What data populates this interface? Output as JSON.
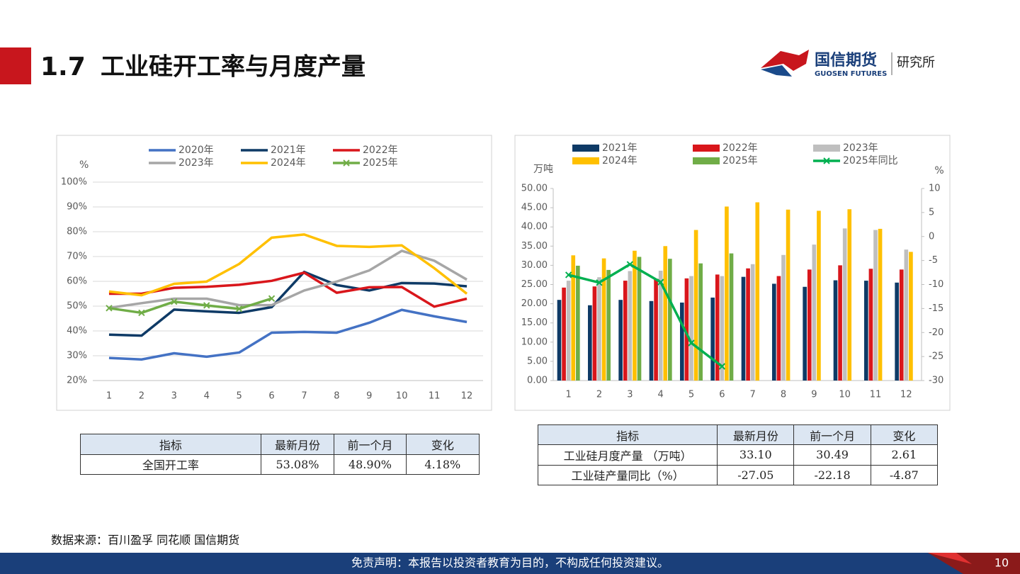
{
  "header": {
    "section": "1.7",
    "title": "工业硅开工率与月度产量"
  },
  "logo": {
    "name": "国信期货",
    "name_en": "GUOSEN FUTURES",
    "dept": "研究所"
  },
  "chart_data": [
    {
      "type": "line",
      "y_label": "%",
      "categories": [
        "1",
        "2",
        "3",
        "4",
        "5",
        "6",
        "7",
        "8",
        "9",
        "10",
        "11",
        "12"
      ],
      "ylim": [
        20,
        100
      ],
      "yticks": [
        {
          "value": 20,
          "label": "20%"
        },
        {
          "value": 30,
          "label": "30%"
        },
        {
          "value": 40,
          "label": "40%"
        },
        {
          "value": 50,
          "label": "50%"
        },
        {
          "value": 60,
          "label": "60%"
        },
        {
          "value": 70,
          "label": "70%"
        },
        {
          "value": 80,
          "label": "80%"
        },
        {
          "value": 90,
          "label": "90%"
        },
        {
          "value": 100,
          "label": "100%"
        }
      ],
      "grid": true,
      "series": [
        {
          "name": "2020年",
          "color": "#4472c4",
          "values": [
            29.1,
            28.5,
            31.0,
            29.6,
            31.3,
            39.3,
            39.6,
            39.3,
            43.3,
            48.5,
            45.9,
            43.6
          ]
        },
        {
          "name": "2021年",
          "color": "#0e3a66",
          "values": [
            38.5,
            38.1,
            48.6,
            47.9,
            47.3,
            49.6,
            63.8,
            58.5,
            56.3,
            59.3,
            59.1,
            58.0
          ]
        },
        {
          "name": "2022年",
          "color": "#d9161b",
          "values": [
            55.0,
            55.0,
            57.4,
            57.8,
            58.6,
            60.2,
            63.5,
            55.4,
            57.6,
            57.7,
            49.8,
            53.0
          ]
        },
        {
          "name": "2023年",
          "color": "#a6a6a6",
          "values": [
            49.3,
            51.2,
            53.0,
            53.0,
            50.4,
            50.4,
            56.3,
            59.9,
            64.4,
            72.3,
            68.3,
            60.7
          ]
        },
        {
          "name": "2024年",
          "color": "#ffc000",
          "values": [
            55.9,
            54.4,
            59.0,
            59.9,
            67.0,
            77.6,
            78.9,
            74.3,
            73.9,
            74.5,
            65.3,
            55.0
          ]
        },
        {
          "name": "2025年",
          "color": "#70ad47",
          "marker": "x",
          "values": [
            49.2,
            47.3,
            51.8,
            50.3,
            48.9,
            53.08,
            null,
            null,
            null,
            null,
            null,
            null
          ]
        }
      ]
    },
    {
      "type": "bar",
      "y_label": "万吨",
      "y2_label": "%",
      "categories": [
        "1",
        "2",
        "3",
        "4",
        "5",
        "6",
        "7",
        "8",
        "9",
        "10",
        "11",
        "12"
      ],
      "ylim": [
        0,
        50
      ],
      "yticks": [
        {
          "value": 0,
          "label": "0.00"
        },
        {
          "value": 5,
          "label": "5.00"
        },
        {
          "value": 10,
          "label": "10.00"
        },
        {
          "value": 15,
          "label": "15.00"
        },
        {
          "value": 20,
          "label": "20.00"
        },
        {
          "value": 25,
          "label": "25.00"
        },
        {
          "value": 30,
          "label": "30.00"
        },
        {
          "value": 35,
          "label": "35.00"
        },
        {
          "value": 40,
          "label": "40.00"
        },
        {
          "value": 45,
          "label": "45.00"
        },
        {
          "value": 50,
          "label": "50.00"
        }
      ],
      "y2lim": [
        -30,
        10
      ],
      "y2ticks": [
        -30,
        -25,
        -20,
        -15,
        -10,
        -5,
        0,
        5,
        10
      ],
      "grid": false,
      "series": [
        {
          "name": "2021年",
          "color": "#0e3a66",
          "values": [
            21.0,
            19.6,
            21.0,
            20.7,
            20.3,
            21.6,
            27.0,
            25.2,
            24.4,
            26.1,
            26.0,
            25.5
          ]
        },
        {
          "name": "2022年",
          "color": "#d9161b",
          "values": [
            24.2,
            24.5,
            26.0,
            26.5,
            26.6,
            27.6,
            29.2,
            27.2,
            28.9,
            30.0,
            29.1,
            28.9
          ]
        },
        {
          "name": "2023年",
          "color": "#bfbfbf",
          "values": [
            26.0,
            26.9,
            28.5,
            28.6,
            27.2,
            27.2,
            30.3,
            32.7,
            35.4,
            39.6,
            39.2,
            34.1
          ]
        },
        {
          "name": "2024年",
          "color": "#ffc000",
          "values": [
            32.6,
            31.8,
            33.8,
            35.0,
            39.2,
            45.3,
            46.4,
            44.5,
            44.2,
            44.6,
            39.5,
            33.5
          ]
        },
        {
          "name": "2025年",
          "color": "#70ad47",
          "values": [
            29.9,
            28.8,
            32.2,
            31.7,
            30.5,
            33.1,
            null,
            null,
            null,
            null,
            null,
            null
          ]
        },
        {
          "name": "2025年同比",
          "color": "#00b050",
          "axis": "y2",
          "marker": "x",
          "values": [
            -8.0,
            -9.6,
            -5.8,
            -9.5,
            -22.18,
            -27.05,
            null,
            null,
            null,
            null,
            null,
            null
          ]
        }
      ]
    }
  ],
  "tables": [
    {
      "columns": [
        "指标",
        "最新月份",
        "前一个月",
        "变化"
      ],
      "rows": [
        [
          "全国开工率",
          "53.08%",
          "48.90%",
          "4.18%"
        ]
      ]
    },
    {
      "columns": [
        "指标",
        "最新月份",
        "前一个月",
        "变化"
      ],
      "rows": [
        [
          "工业硅月度产量 （万吨）",
          "33.10",
          "30.49",
          "2.61"
        ],
        [
          "工业硅产量同比（%）",
          "-27.05",
          "-22.18",
          "-4.87"
        ]
      ]
    }
  ],
  "source": "数据来源：百川盈孚 同花顺 国信期货",
  "footer": {
    "disclaimer": "免责声明：本报告以投资者教育为目的，不构成任何投资建议。",
    "page": "10"
  }
}
